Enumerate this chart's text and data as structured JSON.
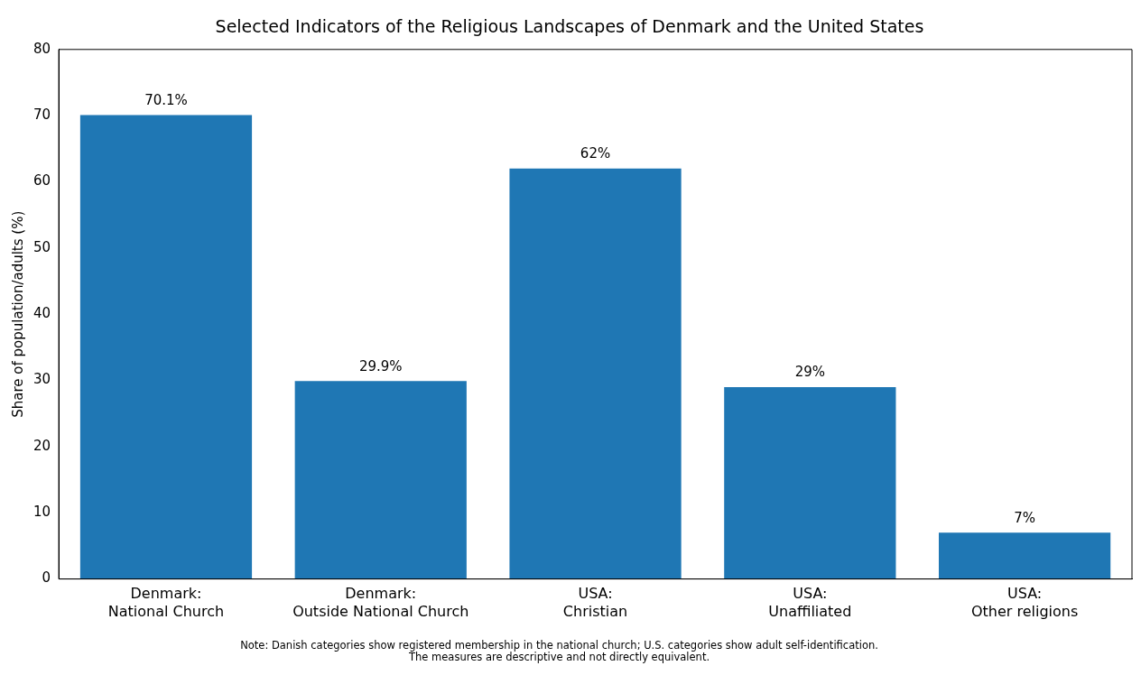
{
  "chart_data": {
    "type": "bar",
    "title": "Selected Indicators of the Religious Landscapes of Denmark and the United States",
    "ylabel": "Share of population/adults (%)",
    "categories": [
      "Denmark:\nNational Church",
      "Denmark:\nOutside National Church",
      "USA:\nChristian",
      "USA:\nUnaffiliated",
      "USA:\nOther religions"
    ],
    "values": [
      70.1,
      29.9,
      62,
      29,
      7
    ],
    "value_labels": [
      "70.1%",
      "29.9%",
      "62%",
      "29%",
      "7%"
    ],
    "color": "#1f77b4",
    "ylim": [
      0,
      80
    ],
    "yticks": [
      0,
      10,
      20,
      30,
      40,
      50,
      60,
      70,
      80
    ],
    "grid": false,
    "annotations": [
      "Note: Danish categories show registered membership in the national church; U.S. categories show adult self-identification.",
      "The measures are descriptive and not directly equivalent."
    ]
  }
}
